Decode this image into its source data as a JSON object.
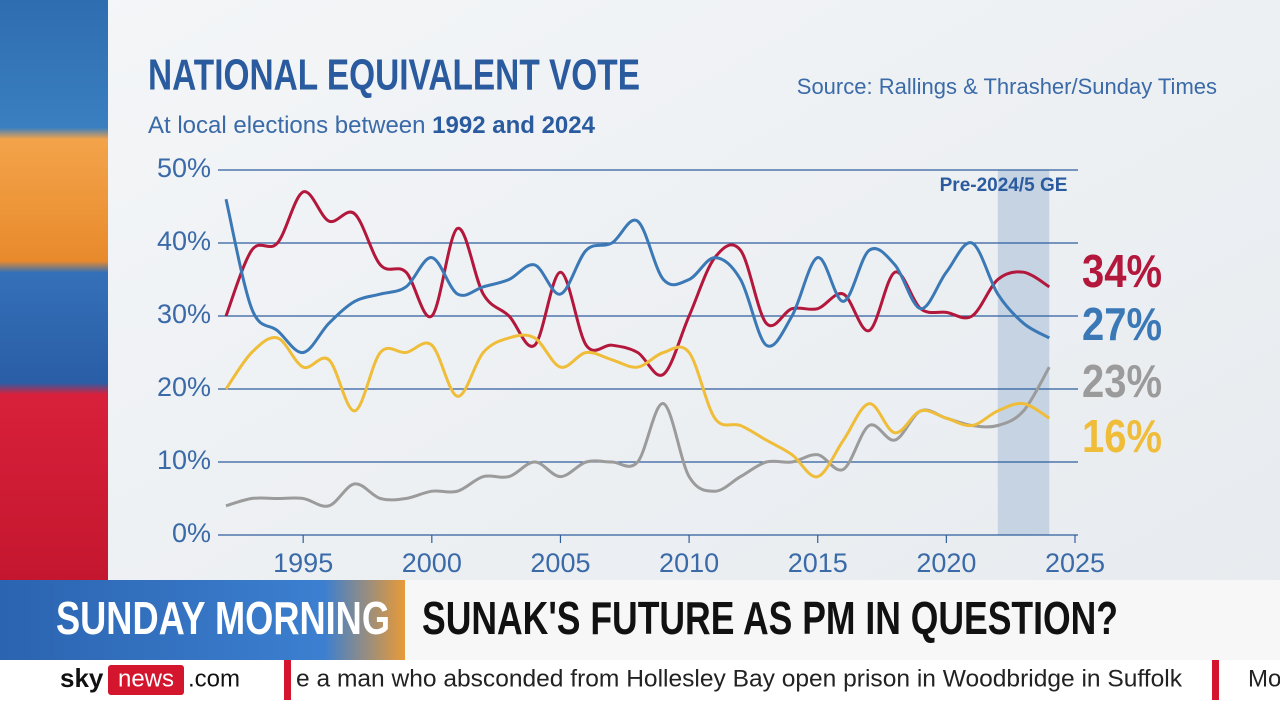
{
  "chart_data": {
    "type": "line",
    "title": "NATIONAL EQUIVALENT VOTE",
    "subtitle": "At local elections between ",
    "subtitle_bold": "1992 and 2024",
    "source": "Source: Rallings & Thrasher/Sunday Times",
    "x": [
      1992,
      1993,
      1994,
      1995,
      1996,
      1997,
      1998,
      1999,
      2000,
      2001,
      2002,
      2003,
      2004,
      2005,
      2006,
      2007,
      2008,
      2009,
      2010,
      2011,
      2012,
      2013,
      2014,
      2015,
      2016,
      2017,
      2018,
      2019,
      2020,
      2021,
      2022,
      2023,
      2024
    ],
    "series": [
      {
        "color": "#b3173b",
        "values": [
          30,
          39,
          40,
          47,
          43,
          44,
          37,
          36,
          30,
          42,
          33,
          30,
          26,
          36,
          26,
          26,
          25,
          22,
          30,
          38,
          39,
          29,
          31,
          31,
          33,
          28,
          36,
          31,
          30.5,
          30,
          35,
          36,
          34
        ],
        "value_labels": [
          null,
          null,
          null,
          null,
          null,
          null,
          null,
          null,
          null,
          null,
          null,
          null,
          null,
          null,
          null,
          null,
          null,
          null,
          null,
          null,
          null,
          null,
          null,
          null,
          null,
          null,
          null,
          null,
          null,
          null,
          null,
          null,
          "34%"
        ]
      },
      {
        "color": "#3b78b6",
        "values": [
          46,
          31,
          28,
          25,
          29,
          32,
          33,
          34,
          38,
          33,
          34,
          35,
          37,
          33,
          39,
          40,
          43,
          35,
          35,
          38,
          35,
          26,
          30,
          38,
          32,
          39,
          37,
          31,
          36,
          40,
          33,
          29,
          27
        ],
        "value_labels": [
          null,
          null,
          null,
          null,
          null,
          null,
          null,
          null,
          null,
          null,
          null,
          null,
          null,
          null,
          null,
          null,
          null,
          null,
          null,
          null,
          null,
          null,
          null,
          null,
          null,
          null,
          null,
          null,
          null,
          null,
          null,
          null,
          "27%"
        ]
      },
      {
        "color": "#9b9b9b",
        "values": [
          4,
          5,
          5,
          5,
          4,
          7,
          5,
          5,
          6,
          6,
          8,
          8,
          10,
          8,
          10,
          10,
          10,
          18,
          8,
          6,
          8,
          10,
          10,
          11,
          9,
          15,
          13,
          17,
          16,
          15,
          15,
          17,
          23
        ],
        "value_labels": [
          null,
          null,
          null,
          null,
          null,
          null,
          null,
          null,
          null,
          null,
          null,
          null,
          null,
          null,
          null,
          null,
          null,
          null,
          null,
          null,
          null,
          null,
          null,
          null,
          null,
          null,
          null,
          null,
          null,
          null,
          null,
          null,
          "23%"
        ]
      },
      {
        "color": "#efbd39",
        "values": [
          20,
          25,
          27,
          23,
          24,
          17,
          25,
          25,
          26,
          19,
          25,
          27,
          27,
          23,
          25,
          24,
          23,
          25,
          25,
          16,
          15,
          13,
          11,
          8,
          13,
          18,
          14,
          17,
          16,
          15,
          17,
          18,
          16
        ],
        "value_labels": [
          null,
          null,
          null,
          null,
          null,
          null,
          null,
          null,
          null,
          null,
          null,
          null,
          null,
          null,
          null,
          null,
          null,
          null,
          null,
          null,
          null,
          null,
          null,
          null,
          null,
          null,
          null,
          null,
          null,
          null,
          null,
          null,
          "16%"
        ]
      }
    ],
    "xlim": [
      1992,
      2025
    ],
    "xticks": [
      1995,
      2000,
      2005,
      2010,
      2015,
      2020,
      2025
    ],
    "ylim": [
      0,
      50
    ],
    "yticks": [
      {
        "value": 0,
        "label": "0%"
      },
      {
        "value": 10,
        "label": "10%"
      },
      {
        "value": 20,
        "label": "20%"
      },
      {
        "value": 30,
        "label": "30%"
      },
      {
        "value": 40,
        "label": "40%"
      },
      {
        "value": 50,
        "label": "50%"
      }
    ],
    "grid": true,
    "shaded_region": {
      "label": "Pre-2024/5 GE",
      "x_range": [
        2022,
        2024
      ]
    }
  },
  "lower_third": {
    "programme": "SUNDAY MORNING",
    "headline": "SUNAK'S FUTURE AS PM IN QUESTION?"
  },
  "ticker": {
    "logo_sky": "sky",
    "logo_news": "news",
    "logo_com": ".com",
    "text": "e a man who absconded from Hollesley Bay open prison in Woodbridge in Suffolk",
    "next": "Mo"
  }
}
